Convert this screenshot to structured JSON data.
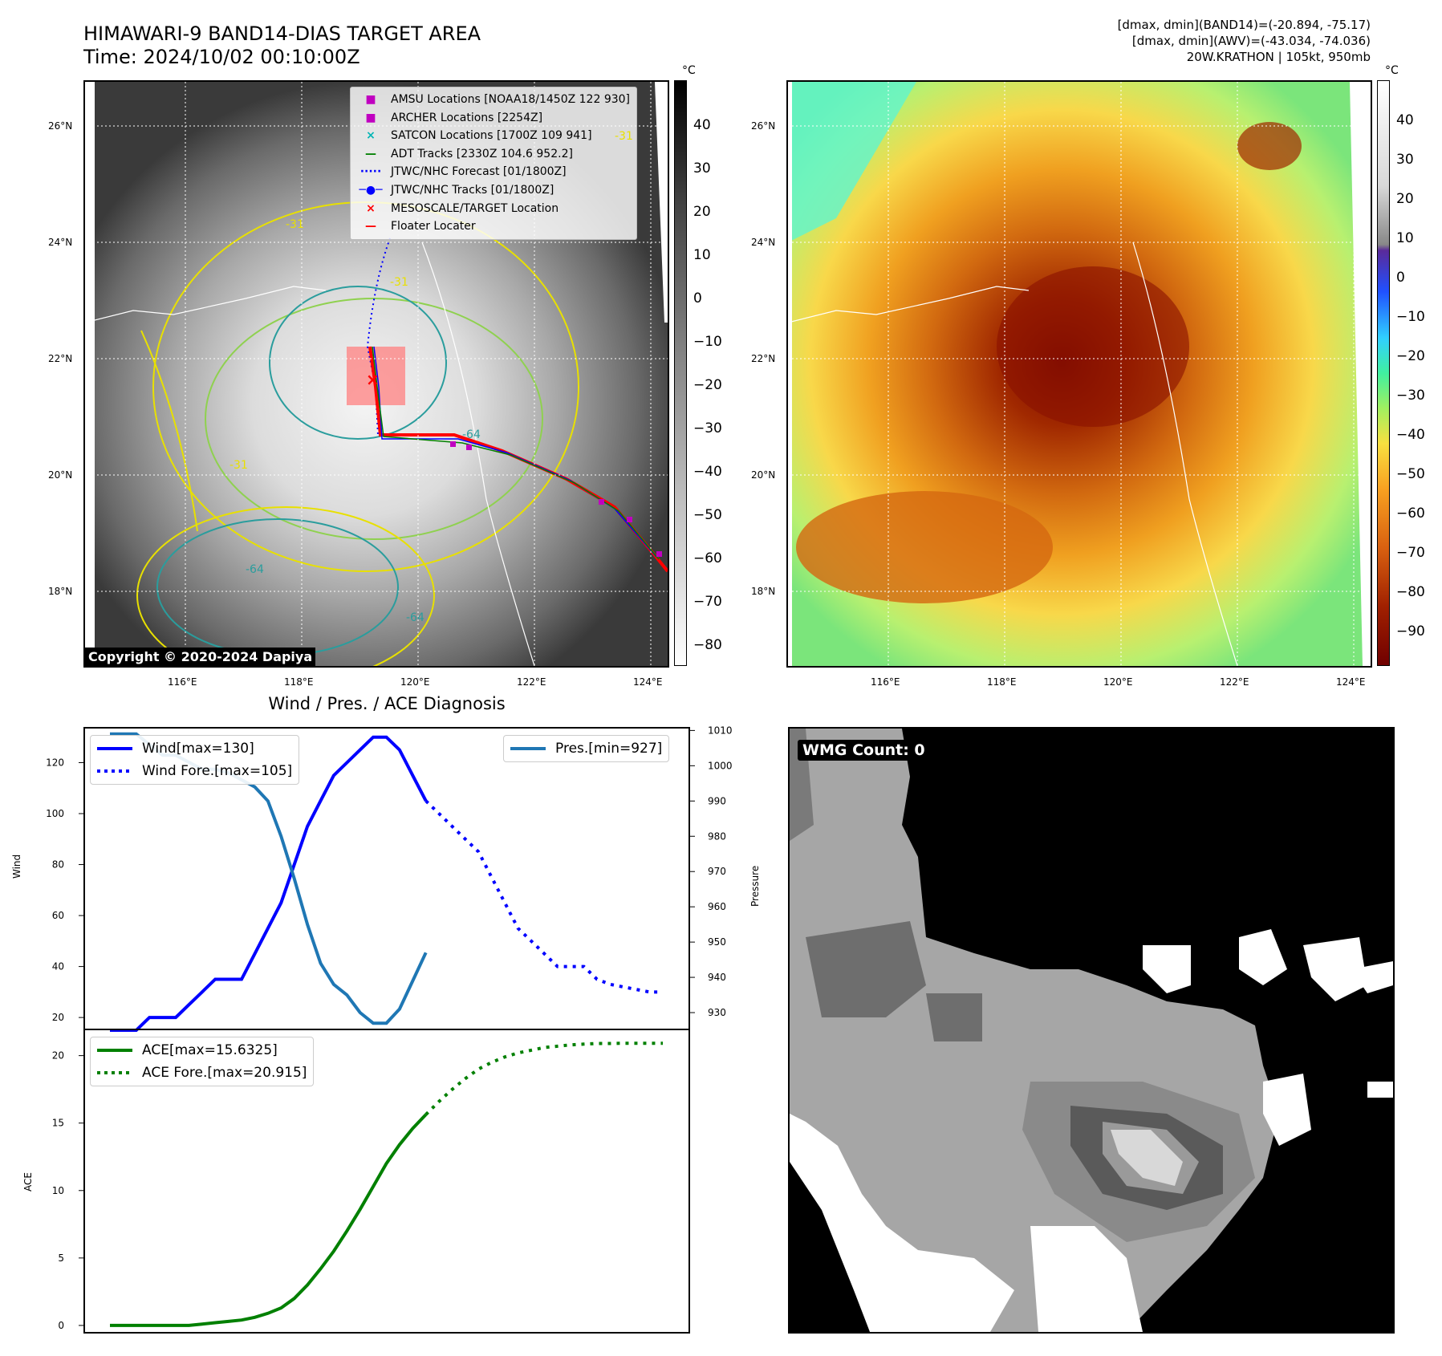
{
  "header": {
    "title_line1": "HIMAWARI-9 BAND14-DIAS TARGET AREA",
    "title_line2": "Time: 2024/10/02 00:10:00Z",
    "info_line1": "[dmax, dmin](BAND14)=(-20.894, -75.17)",
    "info_line2": "[dmax, dmin](AWV)=(-43.034, -74.036)",
    "info_line3": "20W.KRATHON | 105kt, 950mb"
  },
  "map_axes": {
    "lat_labels": [
      "26°N",
      "24°N",
      "22°N",
      "20°N",
      "18°N"
    ],
    "lon_labels": [
      "116°E",
      "118°E",
      "120°E",
      "122°E",
      "124°E"
    ]
  },
  "colorbar_gray": {
    "unit": "°C",
    "ticks": [
      "40",
      "30",
      "20",
      "10",
      "0",
      "−10",
      "−20",
      "−30",
      "−40",
      "−50",
      "−60",
      "−70",
      "−80"
    ]
  },
  "colorbar_color": {
    "unit": "°C",
    "ticks": [
      "40",
      "30",
      "20",
      "10",
      "0",
      "−10",
      "−20",
      "−30",
      "−40",
      "−50",
      "−60",
      "−70",
      "−80",
      "−90"
    ]
  },
  "map_legend": {
    "items": [
      {
        "label": "AMSU Locations [NOAA18/1450Z 122 930]",
        "symbol": "■",
        "color": "#c000c0"
      },
      {
        "label": "ARCHER Locations [2254Z]",
        "symbol": "■",
        "color": "#c000c0"
      },
      {
        "label": "SATCON Locations [1700Z 109 941]",
        "symbol": "×",
        "color": "#00b5b5"
      },
      {
        "label": "ADT Tracks [2330Z 104.6 952.2]",
        "symbol": "—",
        "color": "#008000"
      },
      {
        "label": "JTWC/NHC Forecast [01/1800Z]",
        "symbol": "·····",
        "color": "#0000ff"
      },
      {
        "label": "JTWC/NHC Tracks [01/1800Z]",
        "symbol": "─●─",
        "color": "#0000ff"
      },
      {
        "label": "MESOSCALE/TARGET Location",
        "symbol": "×",
        "color": "#ff0000"
      },
      {
        "label": "Floater Locater",
        "symbol": "—",
        "color": "#ff0000"
      }
    ],
    "contour_labels": [
      "-31",
      "-31",
      "-31",
      "-64",
      "-64",
      "-64",
      "-31"
    ]
  },
  "copyright": "Copyright © 2020-2024 Dapiya",
  "wmg": {
    "label": "WMG Count: 0"
  },
  "chart_data": [
    {
      "type": "line",
      "title": "Wind / Pres. / ACE Diagnosis",
      "ylabel": "Wind",
      "y2label": "Pressure",
      "ylim": [
        15,
        134
      ],
      "y2lim": [
        925,
        1011
      ],
      "yticks": [
        "120",
        "100",
        "80",
        "60",
        "40",
        "20"
      ],
      "y2ticks": [
        "1010",
        "1000",
        "990",
        "980",
        "970",
        "960",
        "950",
        "940",
        "930"
      ],
      "x": [
        0,
        1,
        2,
        3,
        4,
        5,
        6,
        7,
        8,
        9,
        10,
        11,
        12,
        13,
        14,
        15,
        16,
        17,
        18,
        19,
        20,
        21,
        22,
        23,
        24,
        25,
        26,
        27,
        28,
        29,
        30,
        31,
        32,
        33,
        34,
        35,
        36,
        37,
        38,
        39,
        40,
        41,
        42
      ],
      "series": [
        {
          "name": "Wind[max=130]",
          "style": "solid",
          "color": "#0000ff",
          "x": [
            0,
            1,
            2,
            3,
            4,
            5,
            6,
            7,
            8,
            9,
            10,
            11,
            12,
            13,
            14,
            15,
            16,
            17,
            18,
            19,
            20,
            21,
            22,
            23,
            24
          ],
          "values": [
            15,
            15,
            15,
            20,
            20,
            20,
            25,
            30,
            35,
            35,
            35,
            45,
            55,
            65,
            80,
            95,
            105,
            115,
            120,
            125,
            130,
            130,
            125,
            115,
            105
          ]
        },
        {
          "name": "Wind Fore.[max=105]",
          "style": "dotted",
          "color": "#0000ff",
          "x": [
            24,
            25,
            26,
            27,
            28,
            29,
            30,
            31,
            32,
            33,
            34,
            35,
            36,
            37,
            38,
            39,
            40,
            41,
            42
          ],
          "values": [
            105,
            100,
            95,
            90,
            85,
            75,
            65,
            55,
            50,
            45,
            40,
            40,
            40,
            35,
            33,
            32,
            31,
            30,
            30
          ]
        },
        {
          "name": "Pres.[min=927]",
          "style": "solid",
          "color": "#1f77b4",
          "axis": "right",
          "x": [
            0,
            1,
            2,
            3,
            4,
            5,
            6,
            7,
            8,
            9,
            10,
            11,
            12,
            13,
            14,
            15,
            16,
            17,
            18,
            19,
            20,
            21,
            22,
            23,
            24
          ],
          "values": [
            1009,
            1009,
            1009,
            1006,
            1003,
            1003,
            1001,
            999,
            999,
            998,
            996,
            994,
            990,
            980,
            968,
            955,
            944,
            938,
            935,
            930,
            927,
            927,
            931,
            939,
            947
          ]
        }
      ]
    },
    {
      "type": "line",
      "ylabel": "ACE",
      "ylim": [
        -0.6,
        22
      ],
      "yticks": [
        "20",
        "15",
        "10",
        "5",
        "0"
      ],
      "series": [
        {
          "name": "ACE[max=15.6325]",
          "style": "solid",
          "color": "#008000",
          "x": [
            0,
            1,
            2,
            3,
            4,
            5,
            6,
            7,
            8,
            9,
            10,
            11,
            12,
            13,
            14,
            15,
            16,
            17,
            18,
            19,
            20,
            21,
            22,
            23,
            24
          ],
          "values": [
            0,
            0,
            0,
            0,
            0,
            0,
            0,
            0.1,
            0.2,
            0.3,
            0.4,
            0.6,
            0.9,
            1.3,
            2.0,
            3.0,
            4.2,
            5.5,
            7.0,
            8.6,
            10.3,
            12.0,
            13.4,
            14.6,
            15.63
          ]
        },
        {
          "name": "ACE Fore.[max=20.915]",
          "style": "dotted",
          "color": "#008000",
          "x": [
            24,
            25,
            26,
            27,
            28,
            29,
            30,
            31,
            32,
            33,
            34,
            35,
            36,
            37,
            38,
            39,
            40,
            41,
            42
          ],
          "values": [
            15.63,
            16.6,
            17.5,
            18.3,
            19.0,
            19.5,
            19.9,
            20.2,
            20.4,
            20.6,
            20.7,
            20.8,
            20.85,
            20.9,
            20.9,
            20.915,
            20.915,
            20.915,
            20.915
          ]
        }
      ]
    }
  ]
}
